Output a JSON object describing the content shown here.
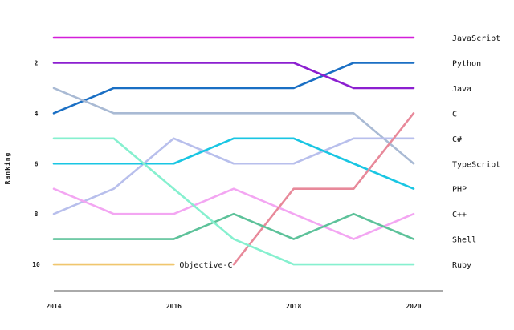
{
  "chart_data": {
    "type": "line",
    "chart_kind": "bump",
    "xlabel": "",
    "ylabel": "Ranking",
    "x": [
      2014,
      2015,
      2016,
      2017,
      2018,
      2019,
      2020
    ],
    "x_ticks": [
      "2014",
      "2016",
      "2018",
      "2020"
    ],
    "y_ticks": [
      "2",
      "4",
      "6",
      "8",
      "10"
    ],
    "ylim": [
      11,
      0
    ],
    "y_inverted": true,
    "grid": false,
    "legend_position": "right",
    "series": [
      {
        "name": "JavaScript",
        "color": "#d41fd9",
        "values": [
          1,
          1,
          1,
          1,
          1,
          1,
          1
        ]
      },
      {
        "name": "Python",
        "color": "#1a6fc4",
        "values": [
          4,
          3,
          3,
          3,
          3,
          2,
          2
        ]
      },
      {
        "name": "Java",
        "color": "#8c1fd0",
        "values": [
          2,
          2,
          2,
          2,
          2,
          3,
          3
        ]
      },
      {
        "name": "TypeScript",
        "color": "#a9bad4",
        "values": [
          3,
          4,
          4,
          4,
          4,
          4,
          6
        ]
      },
      {
        "name": "C#",
        "color": "#b8bfec",
        "values": [
          8,
          7,
          5,
          6,
          6,
          5,
          5
        ]
      },
      {
        "name": "PHP",
        "color": "#19c6e3",
        "values": [
          6,
          6,
          6,
          5,
          5,
          6,
          7
        ]
      },
      {
        "name": "C++",
        "color": "#f3a6f2",
        "values": [
          7,
          8,
          8,
          7,
          8,
          9,
          8
        ]
      },
      {
        "name": "C",
        "color": "#e8899a",
        "values": [
          null,
          null,
          null,
          10,
          7,
          7,
          4
        ]
      },
      {
        "name": "Shell",
        "color": "#5dc29a",
        "values": [
          9,
          9,
          9,
          8,
          9,
          8,
          9
        ]
      },
      {
        "name": "Ruby",
        "color": "#86f0cf",
        "values": [
          5,
          5,
          7,
          9,
          10,
          10,
          10
        ]
      },
      {
        "name": "Objective-C",
        "color": "#f0c66e",
        "values": [
          10,
          10,
          10,
          null,
          null,
          null,
          null
        ]
      }
    ],
    "annotations": [
      {
        "text": "Objective-C",
        "x": 2016,
        "y": 10
      }
    ]
  }
}
